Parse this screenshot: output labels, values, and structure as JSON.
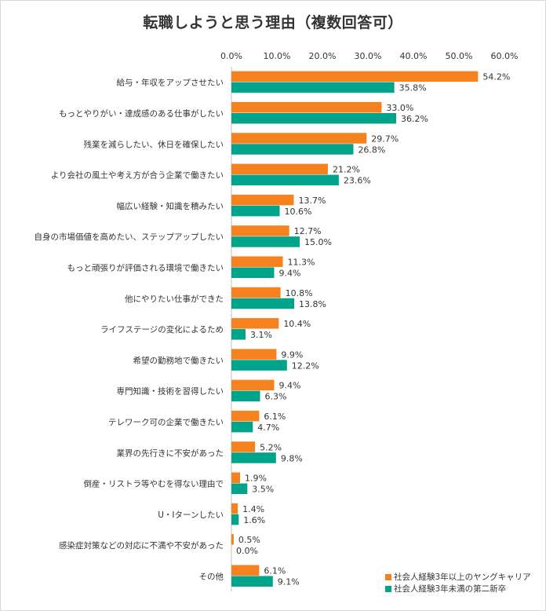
{
  "chart_data": {
    "type": "bar",
    "orientation": "horizontal",
    "title": "転職しようと思う理由（複数回答可）",
    "xlim": [
      0,
      60
    ],
    "x_ticks": [
      "0.0%",
      "10.0%",
      "20.0%",
      "30.0%",
      "40.0%",
      "50.0%",
      "60.0%"
    ],
    "x_tick_values": [
      0,
      10,
      20,
      30,
      40,
      50,
      60
    ],
    "grid": true,
    "legend_position": "bottom-right",
    "categories": [
      "給与・年収をアップさせたい",
      "もっとやりがい・達成感のある仕事がしたい",
      "残業を減らしたい、休日を確保したい",
      "より会社の風土や考え方が合う企業で働きたい",
      "幅広い経験・知識を積みたい",
      "自身の市場価値を高めたい、ステップアップしたい",
      "もっと頑張りが評価される環境で働きたい",
      "他にやりたい仕事ができた",
      "ライフステージの変化によるため",
      "希望の勤務地で働きたい",
      "専門知識・技術を習得したい",
      "テレワーク可の企業で働きたい",
      "業界の先行きに不安があった",
      "倒産・リストラ等やむを得ない理由で",
      "U・Iターンしたい",
      "感染症対策などの対応に不満や不安があった",
      "その他"
    ],
    "series": [
      {
        "name": "社会人経験3年以上のヤングキャリア",
        "color": "#F5821F",
        "values": [
          54.2,
          33.0,
          29.7,
          21.2,
          13.7,
          12.7,
          11.3,
          10.8,
          10.4,
          9.9,
          9.4,
          6.1,
          5.2,
          1.9,
          1.4,
          0.5,
          6.1
        ],
        "labels": [
          "54.2%",
          "33.0%",
          "29.7%",
          "21.2%",
          "13.7%",
          "12.7%",
          "11.3%",
          "10.8%",
          "10.4%",
          "9.9%",
          "9.4%",
          "6.1%",
          "5.2%",
          "1.9%",
          "1.4%",
          "0.5%",
          "6.1%"
        ]
      },
      {
        "name": "社会人経験3年未満の第二新卒",
        "color": "#00A48A",
        "values": [
          35.8,
          36.2,
          26.8,
          23.6,
          10.6,
          15.0,
          9.4,
          13.8,
          3.1,
          12.2,
          6.3,
          4.7,
          9.8,
          3.5,
          1.6,
          0.0,
          9.1
        ],
        "labels": [
          "35.8%",
          "36.2%",
          "26.8%",
          "23.6%",
          "10.6%",
          "15.0%",
          "9.4%",
          "13.8%",
          "3.1%",
          "12.2%",
          "6.3%",
          "4.7%",
          "9.8%",
          "3.5%",
          "1.6%",
          "0.0%",
          "9.1%"
        ]
      }
    ]
  }
}
